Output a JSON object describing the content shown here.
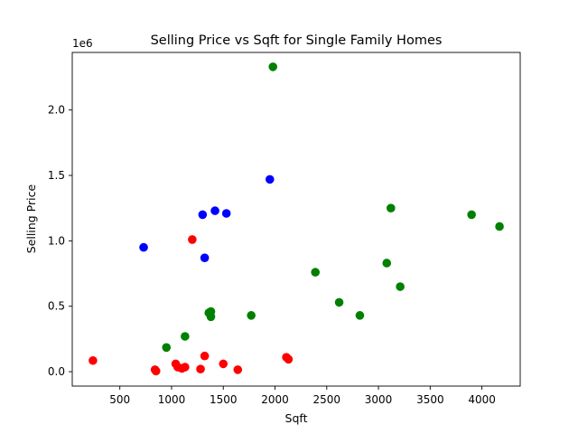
{
  "chart_data": {
    "type": "scatter",
    "title": "Selling Price vs Sqft for Single Family Homes",
    "xlabel": "Sqft",
    "ylabel": "Selling Price",
    "xlim": [
      40,
      4370
    ],
    "ylim": [
      -110000,
      2440000
    ],
    "x_ticks": [
      500,
      1000,
      1500,
      2000,
      2500,
      3000,
      3500,
      4000
    ],
    "y_ticks": [
      0,
      500000,
      1000000,
      1500000,
      2000000
    ],
    "y_tick_labels": [
      "0.0",
      "0.5",
      "1.0",
      "1.5",
      "2.0"
    ],
    "y_offset_label": "1e6",
    "grid": false,
    "legend": "none",
    "series": [
      {
        "color": "#0000ff",
        "points": [
          [
            730,
            950000
          ],
          [
            1300,
            1200000
          ],
          [
            1320,
            870000
          ],
          [
            1420,
            1230000
          ],
          [
            1530,
            1210000
          ],
          [
            1950,
            1470000
          ]
        ]
      },
      {
        "color": "#ff0000",
        "points": [
          [
            240,
            85000
          ],
          [
            840,
            15000
          ],
          [
            850,
            5000
          ],
          [
            1040,
            60000
          ],
          [
            1060,
            35000
          ],
          [
            1100,
            25000
          ],
          [
            1130,
            35000
          ],
          [
            1200,
            1010000
          ],
          [
            1280,
            20000
          ],
          [
            1320,
            120000
          ],
          [
            1500,
            60000
          ],
          [
            1640,
            15000
          ],
          [
            2110,
            110000
          ],
          [
            2130,
            95000
          ]
        ]
      },
      {
        "color": "#008000",
        "points": [
          [
            950,
            185000
          ],
          [
            1130,
            270000
          ],
          [
            1360,
            450000
          ],
          [
            1380,
            460000
          ],
          [
            1380,
            420000
          ],
          [
            1770,
            430000
          ],
          [
            1980,
            2330000
          ],
          [
            2390,
            760000
          ],
          [
            2620,
            530000
          ],
          [
            2820,
            430000
          ],
          [
            3080,
            830000
          ],
          [
            3120,
            1250000
          ],
          [
            3210,
            650000
          ],
          [
            3900,
            1200000
          ],
          [
            4170,
            1110000
          ]
        ]
      }
    ]
  }
}
